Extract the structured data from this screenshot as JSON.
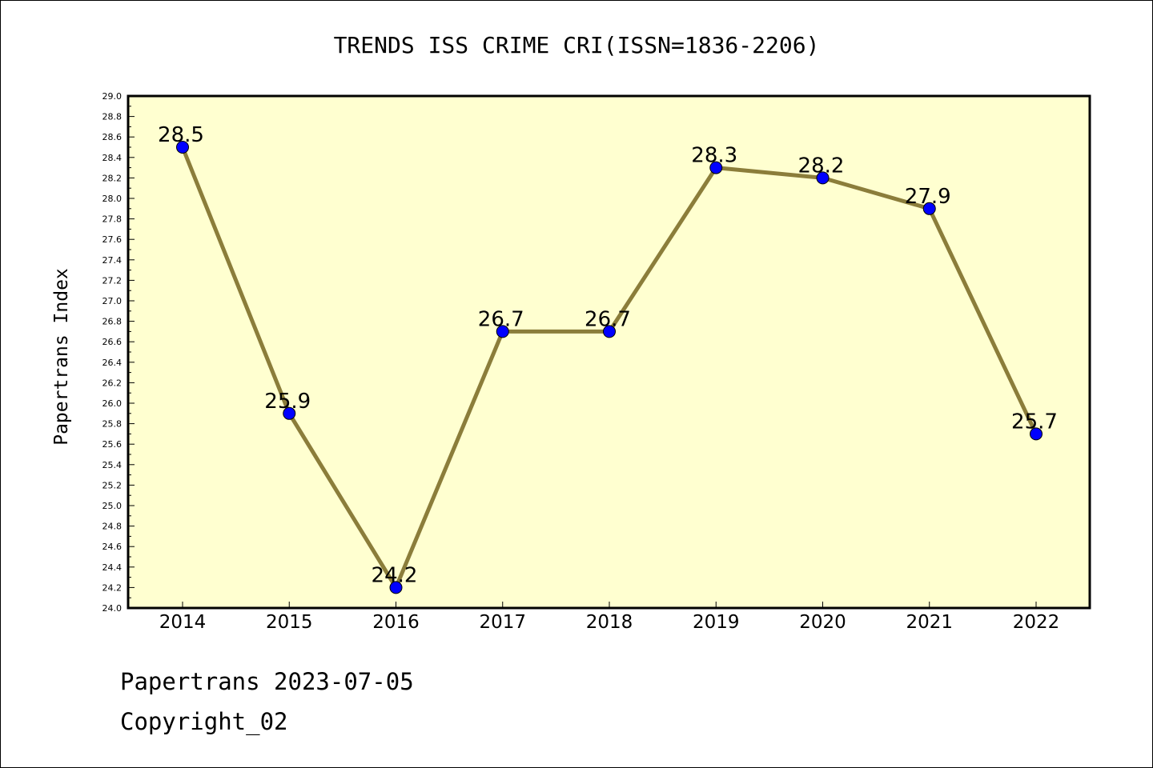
{
  "chart_data": {
    "type": "line",
    "title": "TRENDS ISS CRIME CRI(ISSN=1836-2206)",
    "xlabel": "",
    "ylabel": "Papertrans Index",
    "categories": [
      "2014",
      "2015",
      "2016",
      "2017",
      "2018",
      "2019",
      "2020",
      "2021",
      "2022"
    ],
    "series": [
      {
        "values": [
          28.5,
          25.9,
          24.2,
          26.7,
          26.7,
          28.3,
          28.2,
          27.9,
          25.7
        ],
        "data_labels": [
          "28.5",
          "25.9",
          "24.2",
          "26.7",
          "26.7",
          "28.3",
          "28.2",
          "27.9",
          "25.7"
        ]
      }
    ],
    "ylim": [
      24.0,
      29.0
    ],
    "ytick_labels": [
      "24.0",
      "24.2",
      "24.4",
      "24.6",
      "24.8",
      "25.0",
      "25.2",
      "25.4",
      "25.6",
      "25.8",
      "26.0",
      "26.2",
      "26.4",
      "26.6",
      "26.8",
      "27.0",
      "27.2",
      "27.4",
      "27.6",
      "27.8",
      "28.0",
      "28.2",
      "28.4",
      "28.6",
      "28.8",
      "29.0"
    ],
    "grid": false,
    "colors": {
      "plot_background": "#ffffd0",
      "line": "#8b7d3a",
      "marker": "#0000ff"
    }
  },
  "footer": {
    "line1": "Papertrans 2023-07-05",
    "line2": "Copyright_02"
  }
}
